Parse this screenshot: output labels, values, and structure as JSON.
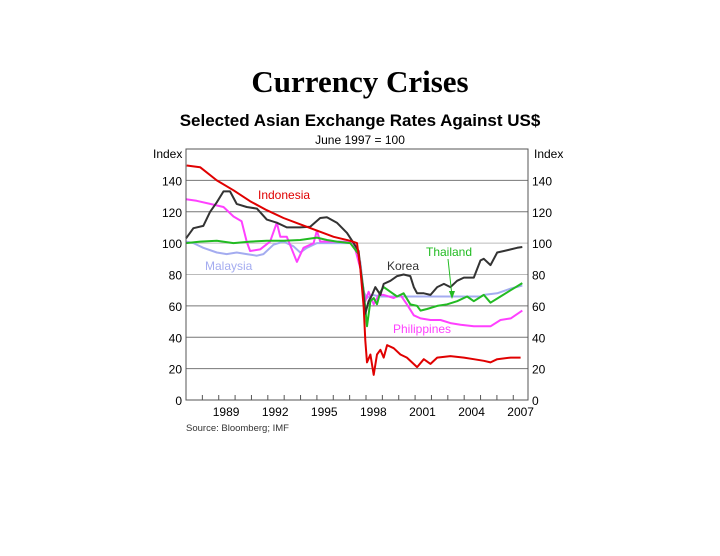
{
  "slide": {
    "title": "Currency Crises"
  },
  "chart_data": {
    "type": "line",
    "title": "Selected Asian Exchange Rates Against US$",
    "subtitle": "June 1997 = 100",
    "ylabel_left": "Index",
    "ylabel_right": "Index",
    "source": "Source: Bloomberg; IMF",
    "xlim": [
      1987,
      2007.9
    ],
    "ylim": [
      0,
      160
    ],
    "yticks": [
      0,
      20,
      40,
      60,
      80,
      100,
      120,
      140
    ],
    "xtick_labels": [
      "1989",
      "1992",
      "1995",
      "1998",
      "2001",
      "2004",
      "2007"
    ],
    "grid": true,
    "series": [
      {
        "name": "Indonesia",
        "color": "#e00000",
        "x": [
          1987.04,
          1987.86,
          1988.88,
          1989.9,
          1990.92,
          1991.94,
          1992.96,
          1993.98,
          1995.0,
          1996.02,
          1997.04,
          1997.45,
          1997.65,
          1997.86,
          1997.96,
          1998.06,
          1998.27,
          1998.47,
          1998.67,
          1998.88,
          1999.08,
          1999.29,
          1999.69,
          2000.1,
          2000.5,
          2001.12,
          2001.53,
          2001.94,
          2002.35,
          2003.16,
          2003.98,
          2004.59,
          2005.2,
          2005.61,
          2006.02,
          2006.84,
          2007.45
        ],
        "y": [
          149.5,
          148.4,
          140,
          133.7,
          126.7,
          121,
          116,
          112,
          108,
          104,
          101.5,
          100,
          84,
          59,
          38,
          24,
          29,
          16,
          29,
          32,
          27,
          35,
          33,
          29,
          27,
          21,
          26,
          23,
          27,
          28,
          27,
          26,
          25,
          24,
          26,
          27,
          27
        ]
      },
      {
        "name": "Korea",
        "color": "#333333",
        "x": [
          1987.0,
          1987.45,
          1988.06,
          1988.47,
          1988.88,
          1989.29,
          1989.69,
          1990.1,
          1990.71,
          1991.33,
          1991.94,
          1992.55,
          1993.16,
          1993.98,
          1994.59,
          1995.2,
          1995.61,
          1996.22,
          1996.84,
          1997.24,
          1997.55,
          1997.76,
          1997.96,
          1998.16,
          1998.37,
          1998.57,
          1998.88,
          1999.08,
          1999.49,
          1999.9,
          2000.3,
          2000.71,
          2000.92,
          2001.12,
          2001.53,
          2001.94,
          2002.35,
          2002.76,
          2003.16,
          2003.57,
          2003.98,
          2004.59,
          2005.0,
          2005.2,
          2005.61,
          2006.02,
          2006.43,
          2006.84,
          2007.24,
          2007.55
        ],
        "y": [
          103,
          109.5,
          111,
          120,
          126,
          133,
          133,
          125,
          123,
          122,
          115,
          113,
          110,
          110,
          110.5,
          116,
          116.5,
          113,
          106.5,
          100,
          95,
          74,
          55,
          63,
          67,
          72,
          67,
          74,
          76,
          79,
          80,
          79,
          72,
          68,
          68,
          67,
          72,
          74,
          72,
          76,
          78,
          78,
          89,
          90,
          86,
          94,
          95,
          96,
          97,
          97.5
        ]
      },
      {
        "name": "Thailand",
        "color": "#22bb22",
        "x": [
          1987.0,
          1987.86,
          1988.88,
          1989.9,
          1990.92,
          1991.94,
          1992.96,
          1993.98,
          1995.0,
          1995.61,
          1996.22,
          1997.04,
          1997.55,
          1997.86,
          1998.06,
          1998.27,
          1998.47,
          1998.67,
          1998.88,
          1999.08,
          1999.49,
          1999.9,
          2000.3,
          2000.71,
          2001.12,
          2001.33,
          2001.73,
          2002.35,
          2002.96,
          2003.57,
          2004.18,
          2004.59,
          2005.2,
          2005.61,
          2006.22,
          2006.84,
          2007.55
        ],
        "y": [
          100,
          101,
          101.5,
          100,
          101,
          101.5,
          101.5,
          102,
          103.5,
          102,
          101,
          100,
          93,
          69,
          47,
          63,
          65,
          61,
          69,
          72,
          69,
          66,
          68,
          61,
          60,
          57,
          58,
          60,
          61,
          63,
          66,
          63,
          67,
          62,
          66,
          70,
          74.5
        ]
      },
      {
        "name": "Malaysia",
        "color": "#a4acf0",
        "x": [
          1987.0,
          1987.45,
          1988.06,
          1988.88,
          1989.49,
          1990.1,
          1990.71,
          1991.33,
          1991.73,
          1992.35,
          1992.96,
          1993.57,
          1993.98,
          1994.39,
          1995.0,
          1995.82,
          1996.63,
          1997.24,
          1997.65,
          1997.86,
          1998.06,
          1998.37,
          1998.88,
          1999.49,
          2005.0,
          2005.2,
          2006.02,
          2006.84,
          2007.55
        ],
        "y": [
          101,
          100,
          97,
          94,
          93,
          94,
          93,
          92,
          93,
          99,
          101,
          98,
          94,
          97,
          100,
          100,
          100,
          100,
          88,
          69,
          65,
          67,
          66,
          66,
          66,
          67,
          68,
          71,
          73
        ]
      },
      {
        "name": "Philippines",
        "color": "#ff40ff",
        "x": [
          1987.0,
          1987.65,
          1988.47,
          1989.29,
          1989.9,
          1990.4,
          1990.71,
          1990.92,
          1991.53,
          1992.14,
          1992.55,
          1992.76,
          1993.16,
          1993.78,
          1994.18,
          1994.8,
          1995.0,
          1995.2,
          1995.82,
          1996.63,
          1997.24,
          1997.65,
          1997.96,
          1998.16,
          1998.47,
          1998.78,
          1999.08,
          1999.69,
          2000.1,
          2000.5,
          2000.92,
          2001.33,
          2001.94,
          2002.55,
          2003.16,
          2003.78,
          2004.59,
          2005.61,
          2006.22,
          2006.84,
          2007.55
        ],
        "y": [
          128,
          127,
          125,
          123,
          117,
          114,
          101,
          95,
          96,
          101,
          113,
          104,
          104,
          88,
          97,
          100,
          108,
          101,
          101,
          101,
          100,
          84,
          63,
          69,
          61,
          67,
          67,
          65,
          67,
          61,
          54,
          52,
          51,
          51,
          49,
          48,
          47,
          47,
          51,
          52,
          57
        ]
      }
    ]
  }
}
